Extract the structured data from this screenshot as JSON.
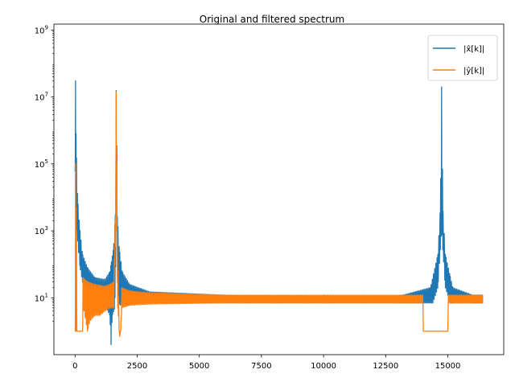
{
  "chart_data": {
    "type": "line",
    "title": "Original and filtered spectrum",
    "xlabel": "",
    "ylabel": "",
    "x_scale": "linear",
    "y_scale": "log",
    "xlim": [
      -850,
      17250
    ],
    "ylim": [
      0.2,
      1500000000
    ],
    "x_ticks": [
      0,
      2500,
      5000,
      7500,
      10000,
      12500,
      15000
    ],
    "x_tick_labels": [
      "0",
      "2500",
      "5000",
      "7500",
      "10000",
      "12500",
      "15000"
    ],
    "y_ticks": [
      10,
      1000,
      100000,
      10000000,
      1000000000
    ],
    "y_tick_labels": [
      {
        "base": "10",
        "exp": "1"
      },
      {
        "base": "10",
        "exp": "3"
      },
      {
        "base": "10",
        "exp": "5"
      },
      {
        "base": "10",
        "exp": "7"
      },
      {
        "base": "10",
        "exp": "9"
      }
    ],
    "grid": false,
    "legend_position": "top-right",
    "series": [
      {
        "name": "|x̂[k]|",
        "color": "#1f77b4",
        "envelope_note": "dense oscillating magnitude spectrum",
        "upper": [
          [
            0,
            60000
          ],
          [
            10,
            400000000
          ],
          [
            20,
            30000000
          ],
          [
            40,
            800000
          ],
          [
            60,
            150000
          ],
          [
            100,
            10000
          ],
          [
            200,
            1000
          ],
          [
            300,
            200
          ],
          [
            500,
            80
          ],
          [
            800,
            40
          ],
          [
            1200,
            35
          ],
          [
            1400,
            60
          ],
          [
            1550,
            300
          ],
          [
            1620,
            3000
          ],
          [
            1660,
            40000000
          ],
          [
            1700,
            3000
          ],
          [
            1780,
            300
          ],
          [
            1900,
            60
          ],
          [
            2200,
            25
          ],
          [
            3000,
            15
          ],
          [
            6000,
            12
          ],
          [
            10000,
            11
          ],
          [
            13000,
            11
          ],
          [
            14300,
            20
          ],
          [
            14600,
            200
          ],
          [
            14700,
            5000
          ],
          [
            14750,
            20000000
          ],
          [
            14800,
            5000
          ],
          [
            14900,
            200
          ],
          [
            15200,
            20
          ],
          [
            16000,
            12
          ],
          [
            16400,
            12
          ]
        ],
        "lower": [
          [
            0,
            60000
          ],
          [
            10,
            100000
          ],
          [
            20,
            3000
          ],
          [
            40,
            1500
          ],
          [
            100,
            500
          ],
          [
            200,
            80
          ],
          [
            300,
            30
          ],
          [
            500,
            12
          ],
          [
            800,
            8
          ],
          [
            1200,
            6
          ],
          [
            1400,
            3
          ],
          [
            1450,
            0.4
          ],
          [
            1500,
            3
          ],
          [
            1600,
            5
          ],
          [
            1660,
            1000
          ],
          [
            1720,
            8
          ],
          [
            1800,
            6
          ],
          [
            2200,
            7
          ],
          [
            3000,
            7
          ],
          [
            6000,
            7
          ],
          [
            10000,
            7
          ],
          [
            12000,
            7
          ],
          [
            13000,
            7
          ],
          [
            14000,
            7
          ],
          [
            14400,
            7
          ],
          [
            14600,
            20
          ],
          [
            14750,
            1000
          ],
          [
            14900,
            20
          ],
          [
            15100,
            7
          ],
          [
            16000,
            7
          ],
          [
            16400,
            7
          ]
        ]
      },
      {
        "name": "|ŷ[k]|",
        "color": "#ff7f0e",
        "envelope_note": "filtered spectrum, bins zeroed to 1 near the peaks",
        "upper": [
          [
            0,
            1
          ],
          [
            10,
            40000000
          ],
          [
            20,
            100000
          ],
          [
            40,
            5000
          ],
          [
            60,
            1000
          ],
          [
            80,
            1
          ],
          [
            300,
            1
          ],
          [
            320,
            40
          ],
          [
            500,
            30
          ],
          [
            800,
            25
          ],
          [
            1200,
            22
          ],
          [
            1400,
            25
          ],
          [
            1560,
            30
          ],
          [
            1600,
            400
          ],
          [
            1660,
            30000000
          ],
          [
            1700,
            400
          ],
          [
            1740,
            30
          ],
          [
            1780,
            1
          ],
          [
            1840,
            1
          ],
          [
            1880,
            20
          ],
          [
            2200,
            16
          ],
          [
            3000,
            14
          ],
          [
            6000,
            12
          ],
          [
            10000,
            12
          ],
          [
            13900,
            12
          ],
          [
            14000,
            12
          ],
          [
            14000,
            1
          ],
          [
            15000,
            1
          ],
          [
            15000,
            12
          ],
          [
            16400,
            12
          ]
        ],
        "lower": [
          [
            0,
            1
          ],
          [
            10,
            1
          ],
          [
            80,
            1
          ],
          [
            300,
            1
          ],
          [
            340,
            5
          ],
          [
            500,
            1
          ],
          [
            600,
            2
          ],
          [
            800,
            3
          ],
          [
            1000,
            3
          ],
          [
            1200,
            4
          ],
          [
            1400,
            5
          ],
          [
            1560,
            5
          ],
          [
            1600,
            100
          ],
          [
            1660,
            1000
          ],
          [
            1720,
            5
          ],
          [
            1780,
            1
          ],
          [
            1800,
            0.7
          ],
          [
            1840,
            1
          ],
          [
            1880,
            5
          ],
          [
            2200,
            6
          ],
          [
            3000,
            6.5
          ],
          [
            6000,
            7
          ],
          [
            10000,
            7
          ],
          [
            13900,
            7
          ],
          [
            14000,
            7
          ],
          [
            14000,
            1
          ],
          [
            15000,
            1
          ],
          [
            15000,
            7
          ],
          [
            16400,
            7
          ]
        ]
      }
    ]
  }
}
